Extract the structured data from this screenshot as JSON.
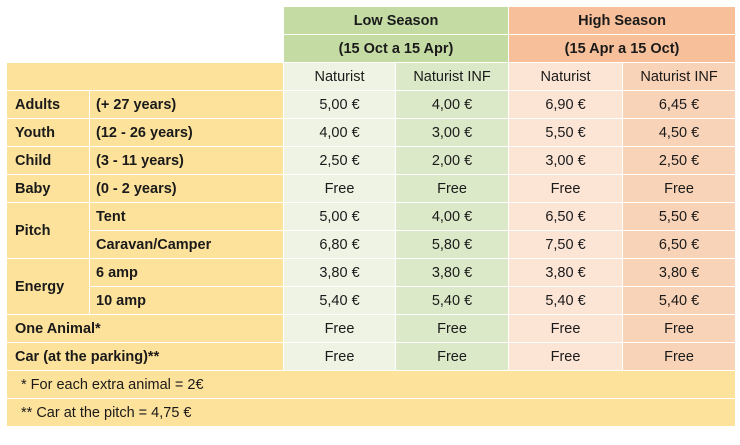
{
  "header": {
    "low": {
      "title": "Low Season",
      "dates": "(15 Oct a 15 Apr)"
    },
    "high": {
      "title": "High Season",
      "dates": "(15 Apr a 15 Oct)"
    },
    "sub": [
      "Naturist",
      "Naturist INF",
      "Naturist",
      "Naturist INF"
    ]
  },
  "rows": {
    "adults": {
      "label": "Adults",
      "range": "(+ 27 years)",
      "values": [
        "5,00 €",
        "4,00 €",
        "6,90 €",
        "6,45 €"
      ]
    },
    "youth": {
      "label": "Youth",
      "range": "(12 - 26 years)",
      "values": [
        "4,00 €",
        "3,00 €",
        "5,50 €",
        "4,50 €"
      ]
    },
    "child": {
      "label": "Child",
      "range": "(3 - 11 years)",
      "values": [
        "2,50 €",
        "2,00 €",
        "3,00 €",
        "2,50 €"
      ]
    },
    "baby": {
      "label": "Baby",
      "range": "(0 - 2 years)",
      "values": [
        "Free",
        "Free",
        "Free",
        "Free"
      ]
    },
    "pitch": {
      "label": "Pitch",
      "tent": {
        "label": "Tent",
        "values": [
          "5,00 €",
          "4,00 €",
          "6,50 €",
          "5,50 €"
        ]
      },
      "caravan": {
        "label": "Caravan/Camper",
        "values": [
          "6,80 €",
          "5,80 €",
          "7,50 €",
          "6,50 €"
        ]
      }
    },
    "energy": {
      "label": "Energy",
      "amp6": {
        "label": "6 amp",
        "values": [
          "3,80 €",
          "3,80 €",
          "3,80 €",
          "3,80 €"
        ]
      },
      "amp10": {
        "label": "10 amp",
        "values": [
          "5,40 €",
          "5,40 €",
          "5,40 €",
          "5,40 €"
        ]
      }
    },
    "animal": {
      "label": "One Animal*",
      "values": [
        "Free",
        "Free",
        "Free",
        "Free"
      ]
    },
    "car": {
      "label": "Car (at the parking)**",
      "values": [
        "Free",
        "Free",
        "Free",
        "Free"
      ]
    }
  },
  "notes": {
    "animal": "* For each extra animal = 2€",
    "car": "** Car at the pitch = 4,75 €"
  }
}
